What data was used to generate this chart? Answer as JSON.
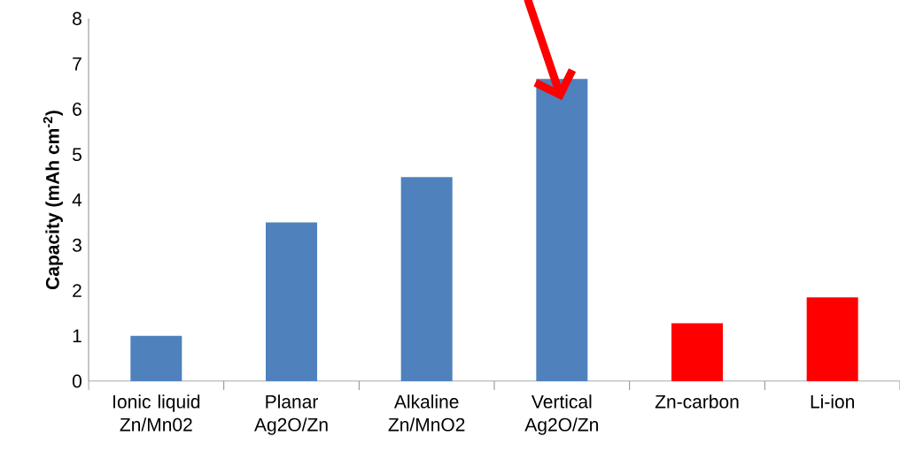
{
  "chart_data": {
    "type": "bar",
    "ylabel": "Capacity  (mAh cm$^{-2}$)",
    "categories": [
      "Ionic liquid Zn/Mn02",
      "Planar Ag2O/Zn",
      "Alkaline Zn/MnO2",
      "Vertical Ag2O/Zn",
      "Zn-carbon",
      "Li-ion"
    ],
    "values": [
      1.0,
      3.5,
      4.5,
      6.67,
      1.28,
      1.85
    ],
    "colors": [
      "#4f81bd",
      "#4f81bd",
      "#4f81bd",
      "#4f81bd",
      "#ff0000",
      "#ff0000"
    ],
    "ylim": [
      0,
      8
    ],
    "yticks": [
      0,
      1,
      2,
      3,
      4,
      5,
      6,
      7,
      8
    ],
    "grid": false
  }
}
